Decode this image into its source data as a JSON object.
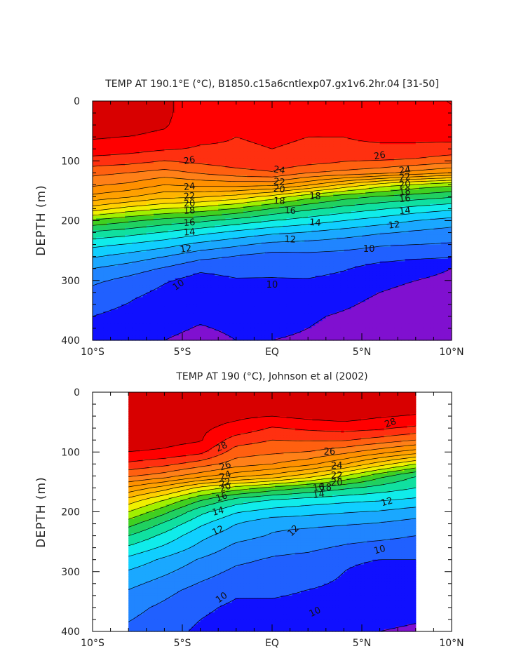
{
  "chart_data": [
    {
      "type": "heatmap",
      "subtype": "filled-contour depth-latitude section",
      "title": "TEMP AT 190.1°E (°C), B1850.c15a6cntlexp07.gx1v6.2hr.04 [31-50]",
      "xlabel": "",
      "ylabel": "DEPTH (m)",
      "x_tick_labels": [
        "10°S",
        "5°S",
        "EQ",
        "5°N",
        "10°N"
      ],
      "x_tick_values": [
        -10,
        -5,
        0,
        5,
        10
      ],
      "y_tick_labels": [
        "0",
        "100",
        "200",
        "300",
        "400"
      ],
      "y_tick_values": [
        0,
        100,
        200,
        300,
        400
      ],
      "xlim": [
        -10,
        10
      ],
      "ylim": [
        400,
        0
      ],
      "data_extent": [
        -10,
        10
      ],
      "x": [
        -10,
        -8,
        -6,
        -4,
        -2,
        0,
        2,
        4,
        6,
        8,
        10
      ],
      "depth": [
        0,
        20,
        40,
        60,
        80,
        100,
        120,
        140,
        160,
        180,
        200,
        220,
        240,
        260,
        280,
        300,
        330,
        360,
        400
      ],
      "temperature": [
        [
          28.4,
          28.4,
          28.2,
          27.4,
          27.1,
          27.2,
          27.2,
          27.2,
          27.8,
          28.0,
          28.0
        ],
        [
          28.3,
          28.4,
          28.2,
          27.4,
          27.1,
          27.2,
          27.1,
          27.2,
          27.8,
          27.9,
          28.0
        ],
        [
          28.3,
          28.3,
          28.1,
          27.3,
          27.1,
          27.2,
          27.1,
          27.2,
          27.6,
          27.5,
          27.9
        ],
        [
          28.1,
          28.0,
          27.8,
          27.2,
          27.0,
          27.1,
          27.0,
          27.0,
          27.2,
          27.2,
          27.3
        ],
        [
          27.6,
          27.4,
          27.1,
          26.9,
          26.9,
          27.0,
          26.9,
          26.8,
          26.8,
          26.8,
          26.6
        ],
        [
          26.6,
          26.4,
          26.0,
          26.3,
          26.6,
          26.8,
          26.5,
          26.1,
          26.0,
          25.8,
          25.4
        ],
        [
          25.3,
          25.0,
          24.6,
          25.1,
          25.6,
          25.9,
          25.0,
          24.7,
          24.3,
          23.6,
          23.0
        ],
        [
          24.2,
          23.8,
          23.0,
          23.3,
          23.4,
          23.3,
          22.2,
          20.8,
          19.5,
          18.7,
          18.2
        ],
        [
          22.7,
          22.1,
          21.3,
          21.1,
          20.6,
          19.6,
          18.3,
          17.4,
          16.9,
          16.5,
          16.1
        ],
        [
          20.5,
          19.6,
          19.0,
          18.6,
          17.9,
          16.9,
          16.2,
          15.6,
          15.1,
          14.6,
          14.2
        ],
        [
          17.8,
          17.2,
          16.6,
          16.2,
          15.6,
          15.0,
          14.5,
          14.0,
          13.5,
          13.0,
          12.6
        ],
        [
          15.8,
          15.4,
          14.9,
          14.3,
          13.7,
          13.2,
          12.9,
          12.5,
          12.1,
          11.8,
          11.5
        ],
        [
          14.3,
          13.9,
          13.4,
          12.7,
          12.2,
          11.7,
          11.6,
          11.4,
          11.1,
          11.0,
          10.9
        ],
        [
          13.1,
          12.6,
          12.0,
          11.3,
          10.9,
          10.6,
          10.7,
          10.6,
          10.4,
          10.2,
          10.1
        ],
        [
          12.0,
          11.5,
          10.9,
          10.2,
          10.4,
          10.3,
          10.5,
          10.1,
          9.6,
          9.3,
          9.0
        ],
        [
          11.2,
          10.7,
          10.1,
          9.6,
          9.9,
          9.9,
          9.9,
          9.6,
          9.2,
          9.0,
          8.8
        ],
        [
          10.5,
          10.1,
          9.6,
          9.3,
          9.4,
          9.6,
          9.5,
          9.2,
          8.9,
          8.7,
          8.6
        ],
        [
          10.0,
          9.7,
          9.3,
          9.1,
          9.2,
          9.3,
          9.1,
          8.9,
          8.7,
          8.5,
          8.6
        ],
        [
          9.6,
          9.3,
          9.0,
          8.8,
          9.0,
          9.0,
          8.9,
          8.7,
          8.6,
          7.8,
          8.0
        ]
      ],
      "contour_levels": [
        9,
        10,
        11,
        12,
        13,
        14,
        15,
        16,
        17,
        18,
        19,
        20,
        21,
        22,
        23,
        24,
        25,
        26,
        27,
        28
      ],
      "contour_labels": [
        "26",
        "26",
        "24",
        "24",
        "24",
        "22",
        "22",
        "22",
        "20",
        "20",
        "20",
        "18",
        "18",
        "18",
        "18",
        "16",
        "16",
        "16",
        "14",
        "14",
        "14",
        "12",
        "12",
        "12",
        "10",
        "10",
        "10"
      ],
      "colors": [
        "#8010d0",
        "#1010ff",
        "#2060ff",
        "#2085ff",
        "#1aa8ff",
        "#10cfff",
        "#10ecea",
        "#10e0a0",
        "#20d060",
        "#40d020",
        "#a0f000",
        "#f0f000",
        "#ffd000",
        "#ffb400",
        "#ffa000",
        "#ff9000",
        "#ff8018",
        "#ff6010",
        "#ff3010",
        "#ff0000",
        "#d80000"
      ]
    },
    {
      "type": "heatmap",
      "subtype": "filled-contour depth-latitude section",
      "title": "TEMP AT 190 (°C), Johnson et al (2002)",
      "xlabel": "",
      "ylabel": "DEPTH (m)",
      "x_tick_labels": [
        "10°S",
        "5°S",
        "EQ",
        "5°N",
        "10°N"
      ],
      "x_tick_values": [
        -10,
        -5,
        0,
        5,
        10
      ],
      "y_tick_labels": [
        "0",
        "100",
        "200",
        "300",
        "400"
      ],
      "y_tick_values": [
        0,
        100,
        200,
        300,
        400
      ],
      "xlim": [
        -10,
        10
      ],
      "ylim": [
        400,
        0
      ],
      "data_extent": [
        -8,
        8
      ],
      "x": [
        -8,
        -6,
        -4,
        -2,
        0,
        2,
        4,
        6,
        8
      ],
      "depth": [
        0,
        20,
        40,
        60,
        80,
        100,
        120,
        140,
        160,
        180,
        200,
        220,
        240,
        260,
        280,
        300,
        330,
        360,
        400
      ],
      "temperature": [
        [
          29.2,
          28.8,
          28.3,
          28.4,
          28.4,
          28.6,
          28.9,
          28.9,
          28.9
        ],
        [
          29.1,
          28.8,
          28.3,
          28.3,
          28.4,
          28.6,
          28.8,
          28.7,
          28.6
        ],
        [
          29.0,
          28.8,
          28.3,
          28.2,
          28.0,
          28.3,
          28.5,
          28.1,
          27.9
        ],
        [
          28.9,
          28.6,
          28.2,
          27.7,
          26.9,
          27.2,
          27.4,
          27.2,
          26.8
        ],
        [
          28.7,
          28.4,
          28.1,
          26.5,
          26.0,
          26.1,
          26.1,
          25.6,
          25.0
        ],
        [
          28.0,
          27.8,
          27.3,
          25.5,
          25.2,
          25.0,
          24.3,
          23.4,
          22.5
        ],
        [
          26.8,
          26.3,
          25.5,
          24.5,
          24.0,
          23.3,
          22.1,
          20.5,
          19.0
        ],
        [
          25.2,
          24.5,
          23.4,
          22.4,
          21.7,
          20.5,
          19.0,
          17.3,
          16.0
        ],
        [
          22.8,
          21.5,
          19.7,
          18.6,
          17.7,
          16.9,
          16.2,
          15.6,
          15.0
        ],
        [
          20.6,
          19.0,
          17.1,
          15.6,
          14.9,
          14.6,
          14.3,
          14.1,
          13.8
        ],
        [
          19.0,
          17.3,
          15.3,
          14.1,
          13.6,
          13.3,
          13.1,
          12.9,
          12.5
        ],
        [
          17.4,
          15.8,
          14.2,
          13.0,
          12.3,
          12.3,
          12.1,
          11.9,
          11.6
        ],
        [
          16.0,
          14.7,
          13.3,
          12.4,
          11.9,
          11.5,
          11.3,
          11.2,
          11.0
        ],
        [
          14.8,
          13.8,
          12.7,
          11.7,
          11.3,
          11.2,
          10.9,
          10.7,
          10.6
        ],
        [
          13.7,
          12.8,
          11.9,
          11.2,
          10.9,
          10.7,
          10.1,
          10.0,
          10.0
        ],
        [
          12.9,
          12.2,
          11.4,
          10.8,
          10.6,
          10.5,
          10.0,
          9.8,
          9.8
        ],
        [
          12.0,
          11.3,
          10.7,
          10.2,
          10.2,
          10.0,
          9.8,
          9.6,
          9.5
        ],
        [
          11.3,
          10.8,
          10.2,
          9.8,
          9.8,
          9.7,
          9.4,
          9.3,
          9.2
        ],
        [
          10.8,
          10.4,
          9.8,
          9.5,
          9.5,
          9.5,
          9.1,
          9.0,
          8.9
        ]
      ],
      "contour_levels": [
        9,
        10,
        11,
        12,
        13,
        14,
        15,
        16,
        17,
        18,
        19,
        20,
        21,
        22,
        23,
        24,
        25,
        26,
        27,
        28
      ],
      "contour_labels": [
        "28",
        "28",
        "26",
        "26",
        "24",
        "24",
        "22",
        "22",
        "20",
        "20",
        "18",
        "16",
        "16",
        "14",
        "14",
        "12",
        "12",
        "12",
        "10",
        "10",
        "10"
      ],
      "colors": [
        "#8010d0",
        "#1010ff",
        "#2060ff",
        "#2085ff",
        "#1aa8ff",
        "#10cfff",
        "#10ecea",
        "#10e0a0",
        "#20d060",
        "#40d020",
        "#a0f000",
        "#f0f000",
        "#ffd000",
        "#ffb400",
        "#ffa000",
        "#ff9000",
        "#ff8018",
        "#ff6010",
        "#ff3010",
        "#ff0000",
        "#d80000"
      ]
    }
  ]
}
